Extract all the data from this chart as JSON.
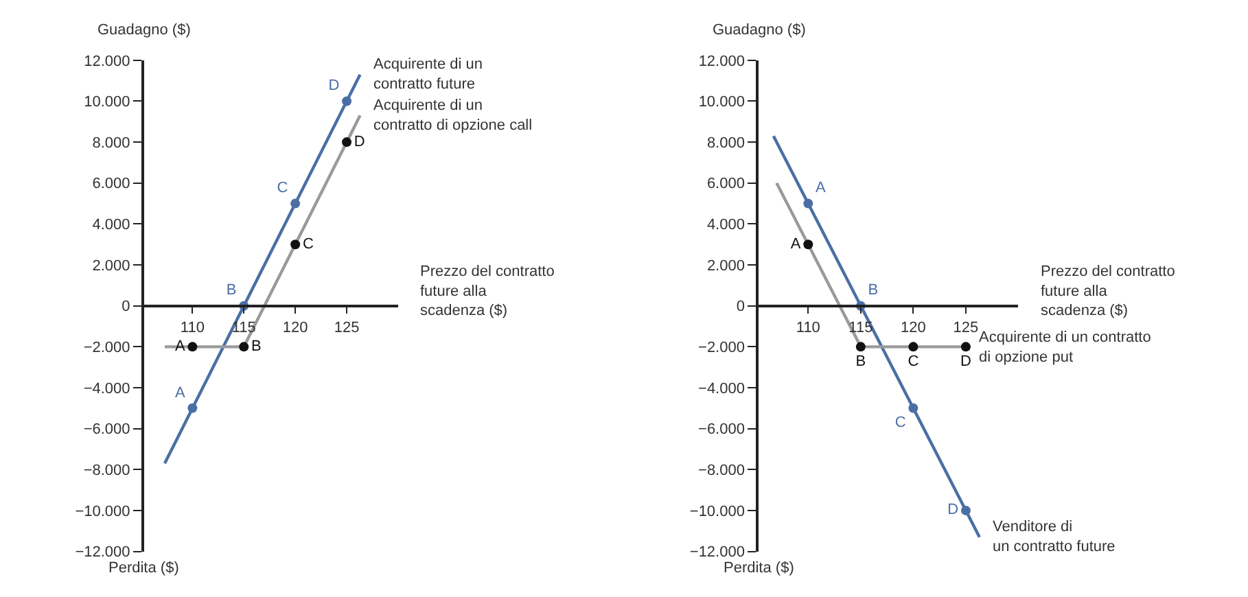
{
  "chart_data": [
    {
      "type": "line",
      "ylabel": "Guadagno ($)",
      "xlabel": "Prezzo del contratto\nfuture alla\nscadenza ($)",
      "annotations": [
        "Perdita ($)"
      ],
      "xlim": [
        105.3,
        130
      ],
      "xticks": [
        110,
        115,
        120,
        125
      ],
      "ylim": [
        -12000,
        12000
      ],
      "yticks": [
        {
          "value": 12000,
          "label": "12.000"
        },
        {
          "value": 10000,
          "label": "10.000"
        },
        {
          "value": 8000,
          "label": "8.000"
        },
        {
          "value": 6000,
          "label": "6.000"
        },
        {
          "value": 4000,
          "label": "4.000"
        },
        {
          "value": 2000,
          "label": "2.000"
        },
        0,
        {
          "value": -2000,
          "label": "−2.000"
        },
        {
          "value": -4000,
          "label": "−4.000"
        },
        {
          "value": -6000,
          "label": "−6.000"
        },
        {
          "value": -8000,
          "label": "−8.000"
        },
        {
          "value": -10000,
          "label": "−10.000"
        },
        {
          "value": -12000,
          "label": "−12.000"
        }
      ],
      "legend": false,
      "series": [
        {
          "type": "line",
          "name": "Acquirente di un\ncontratto future",
          "color": "#4a6fa5",
          "marker": "none",
          "x": [
            107.3,
            126.3
          ],
          "values": [
            -7700,
            11300
          ]
        },
        {
          "type": "line",
          "name": "Acquirente di un\ncontratto di opzione call",
          "color": "#9a9a9a",
          "marker": "none",
          "x": [
            107.3,
            115,
            126.3
          ],
          "values": [
            -2000,
            -2000,
            9300
          ]
        },
        {
          "type": "scatter",
          "color": "#4a6fa5",
          "marker": "circle",
          "x": [
            110,
            115,
            120,
            125
          ],
          "values": [
            -5000,
            0,
            5000,
            10000
          ],
          "value_labels": [
            "A",
            "B",
            "C",
            "D"
          ]
        },
        {
          "type": "scatter",
          "color": "#111111",
          "marker": "circle",
          "x": [
            110,
            115,
            120,
            125
          ],
          "values": [
            -2000,
            -2000,
            3000,
            8000
          ],
          "value_labels": [
            "A",
            "B",
            "C",
            "D"
          ]
        }
      ]
    },
    {
      "type": "line",
      "ylabel": "Guadagno ($)",
      "xlabel": "Prezzo del contratto\nfuture alla\nscadenza ($)",
      "annotations": [
        "Perdita ($)"
      ],
      "xlim": [
        105.3,
        130
      ],
      "xticks": [
        110,
        115,
        120,
        125
      ],
      "ylim": [
        -12000,
        12000
      ],
      "yticks": [
        {
          "value": 12000,
          "label": "12.000"
        },
        {
          "value": 10000,
          "label": "10.000"
        },
        {
          "value": 8000,
          "label": "8.000"
        },
        {
          "value": 6000,
          "label": "6.000"
        },
        {
          "value": 4000,
          "label": "4.000"
        },
        {
          "value": 2000,
          "label": "2.000"
        },
        0,
        {
          "value": -2000,
          "label": "−2.000"
        },
        {
          "value": -4000,
          "label": "−4.000"
        },
        {
          "value": -6000,
          "label": "−6.000"
        },
        {
          "value": -8000,
          "label": "−8.000"
        },
        {
          "value": -10000,
          "label": "−10.000"
        },
        {
          "value": -12000,
          "label": "−12.000"
        }
      ],
      "legend": false,
      "series": [
        {
          "type": "line",
          "name": "Venditore di\nun contratto future",
          "color": "#4a6fa5",
          "marker": "none",
          "x": [
            106.7,
            126.3
          ],
          "values": [
            8300,
            -11300
          ]
        },
        {
          "type": "line",
          "name": "Acquirente di un contratto\ndi opzione put",
          "color": "#9a9a9a",
          "marker": "none",
          "x": [
            107,
            115,
            125
          ],
          "values": [
            6000,
            -2000,
            -2000
          ]
        },
        {
          "type": "scatter",
          "color": "#4a6fa5",
          "marker": "circle",
          "x": [
            110,
            115,
            120,
            125
          ],
          "values": [
            5000,
            0,
            -5000,
            -10000
          ],
          "value_labels": [
            "A",
            "B",
            "C",
            "D"
          ]
        },
        {
          "type": "scatter",
          "color": "#111111",
          "marker": "circle",
          "x": [
            110,
            115,
            120,
            125
          ],
          "values": [
            3000,
            -2000,
            -2000,
            -2000
          ],
          "value_labels": [
            "A",
            "B",
            "C",
            "D"
          ]
        }
      ]
    }
  ]
}
